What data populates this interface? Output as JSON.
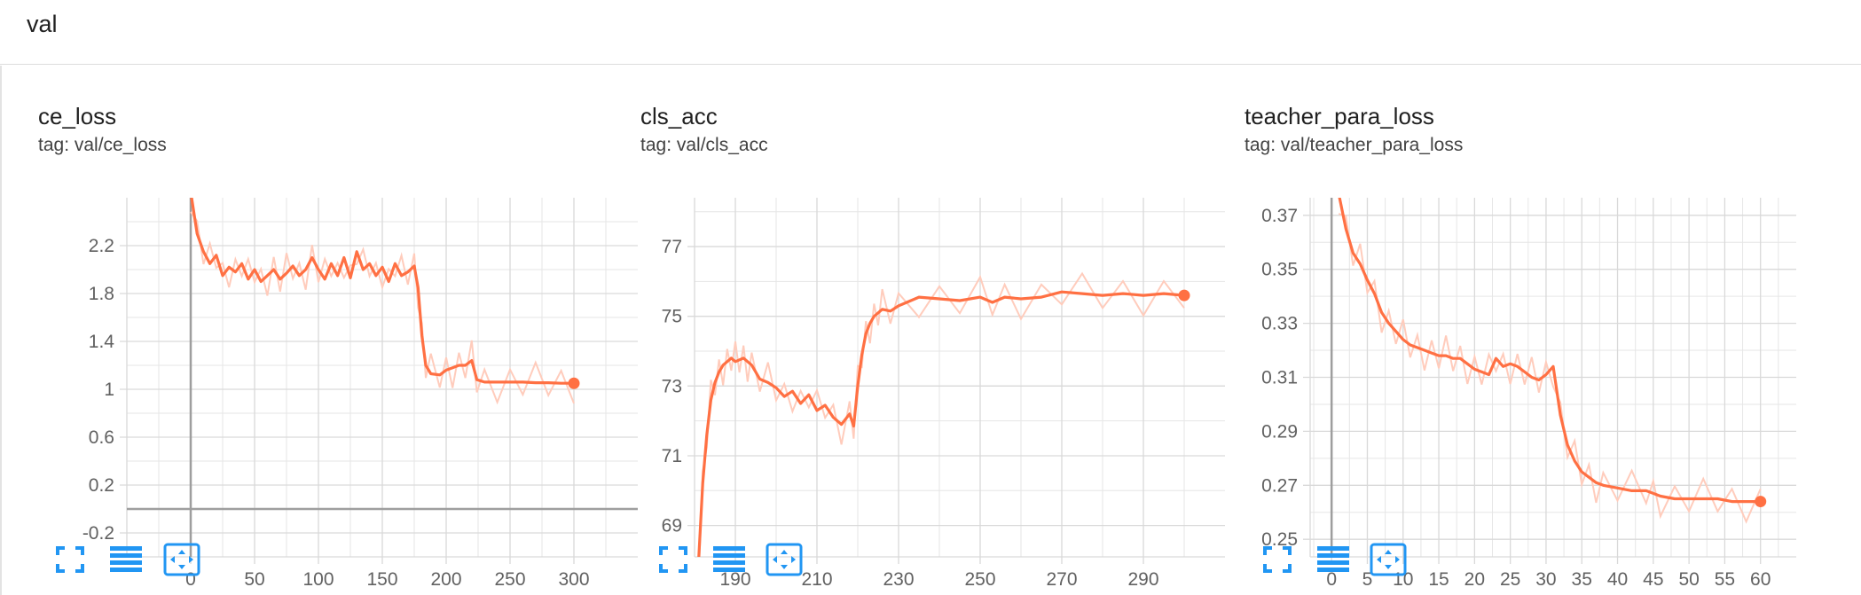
{
  "group": {
    "title": "val"
  },
  "colors": {
    "series": "#ff7043",
    "series_light": "#ffccbc",
    "grid": "#d9d9d9",
    "axis": "#9e9e9e",
    "icon": "#2196f3"
  },
  "toolbar": {
    "buttons": [
      {
        "icon": "fullscreen-icon"
      },
      {
        "icon": "list-icon"
      },
      {
        "icon": "fit-domain-icon"
      }
    ]
  },
  "chart_data": [
    {
      "type": "line",
      "title": "ce_loss",
      "tag": "tag: val/ce_loss",
      "xlim": [
        -50,
        350
      ],
      "ylim": [
        -0.4,
        2.6
      ],
      "xticks": [
        0,
        50,
        100,
        150,
        200,
        250,
        300
      ],
      "yticks": [
        -0.2,
        0.2,
        0.6,
        1,
        1.4,
        1.8,
        2.2
      ],
      "xtick_labels": [
        "0",
        "50",
        "100",
        "150",
        "200",
        "250",
        "300"
      ],
      "ytick_labels": [
        "-0.2",
        "0.2",
        "0.6",
        "1",
        "1.4",
        "1.8",
        "2.2"
      ],
      "series": [
        {
          "x": [
            0,
            5,
            10,
            15,
            20,
            25,
            30,
            35,
            40,
            45,
            50,
            55,
            60,
            65,
            70,
            75,
            80,
            85,
            90,
            95,
            100,
            105,
            110,
            115,
            120,
            125,
            130,
            135,
            140,
            145,
            150,
            155,
            160,
            165,
            170,
            175,
            178,
            181,
            184,
            188,
            195,
            200,
            205,
            210,
            215,
            220,
            224,
            230,
            240,
            250,
            260,
            270,
            280,
            290,
            300
          ],
          "y": [
            2.65,
            2.3,
            2.15,
            2.05,
            2.12,
            1.95,
            2.02,
            1.98,
            2.05,
            1.92,
            2.0,
            1.9,
            1.95,
            2.0,
            1.92,
            1.97,
            2.03,
            1.95,
            2.0,
            2.1,
            2.0,
            1.92,
            2.05,
            1.95,
            2.1,
            1.93,
            2.15,
            2.0,
            2.05,
            1.95,
            2.02,
            1.9,
            2.05,
            1.95,
            1.98,
            2.03,
            1.85,
            1.45,
            1.2,
            1.13,
            1.12,
            1.16,
            1.18,
            1.2,
            1.2,
            1.24,
            1.08,
            1.06,
            1.06,
            1.06,
            1.06,
            1.055,
            1.055,
            1.05,
            1.05
          ]
        }
      ]
    },
    {
      "type": "line",
      "title": "cls_acc",
      "tag": "tag: val/cls_acc",
      "xlim": [
        180,
        310
      ],
      "ylim": [
        68.1,
        78.4
      ],
      "xticks": [
        190,
        210,
        230,
        250,
        270,
        290
      ],
      "yticks": [
        69,
        71,
        73,
        75,
        77
      ],
      "xtick_labels": [
        "190",
        "210",
        "230",
        "250",
        "270",
        "290"
      ],
      "ytick_labels": [
        "69",
        "71",
        "73",
        "75",
        "77"
      ],
      "series": [
        {
          "x": [
            181,
            182,
            183,
            184,
            185,
            186,
            187,
            188,
            189,
            190,
            191,
            192,
            193,
            194,
            196,
            198,
            200,
            202,
            204,
            206,
            208,
            210,
            212,
            214,
            216,
            218,
            219,
            220,
            221,
            222,
            223,
            224,
            225,
            226,
            228,
            230,
            235,
            240,
            245,
            250,
            253,
            256,
            260,
            265,
            270,
            275,
            280,
            285,
            290,
            295,
            300
          ],
          "y": [
            68.0,
            70.2,
            71.6,
            72.6,
            73.1,
            73.4,
            73.6,
            73.7,
            73.8,
            73.7,
            73.75,
            73.8,
            73.7,
            73.6,
            73.2,
            73.1,
            72.95,
            72.7,
            72.85,
            72.5,
            72.75,
            72.3,
            72.45,
            72.1,
            71.9,
            72.2,
            71.85,
            73.0,
            73.9,
            74.5,
            74.8,
            75.0,
            75.1,
            75.2,
            75.15,
            75.3,
            75.55,
            75.5,
            75.45,
            75.55,
            75.4,
            75.55,
            75.5,
            75.55,
            75.7,
            75.65,
            75.6,
            75.65,
            75.6,
            75.65,
            75.6
          ]
        }
      ]
    },
    {
      "type": "line",
      "title": "teacher_para_loss",
      "tag": "tag: val/teacher_para_loss",
      "xlim": [
        -3,
        65
      ],
      "ylim": [
        0.2435,
        0.3765
      ],
      "xticks": [
        0,
        5,
        10,
        15,
        20,
        25,
        30,
        35,
        40,
        45,
        50,
        55,
        60
      ],
      "yticks": [
        0.25,
        0.27,
        0.29,
        0.31,
        0.33,
        0.35,
        0.37
      ],
      "xtick_labels": [
        "0",
        "5",
        "10",
        "15",
        "20",
        "25",
        "30",
        "35",
        "40",
        "45",
        "50",
        "55",
        "60"
      ],
      "ytick_labels": [
        "0.25",
        "0.27",
        "0.29",
        "0.31",
        "0.33",
        "0.35",
        "0.37"
      ],
      "series": [
        {
          "x": [
            1,
            2,
            3,
            4,
            5,
            6,
            7,
            8,
            9,
            10,
            11,
            12,
            13,
            14,
            15,
            16,
            17,
            18,
            19,
            20,
            21,
            22,
            23,
            24,
            25,
            26,
            27,
            28,
            29,
            30,
            31,
            32,
            33,
            34,
            35,
            36,
            37,
            38,
            40,
            42,
            44,
            45,
            46,
            48,
            50,
            52,
            54,
            56,
            58,
            60
          ],
          "y": [
            0.378,
            0.365,
            0.356,
            0.352,
            0.346,
            0.341,
            0.334,
            0.33,
            0.327,
            0.324,
            0.322,
            0.321,
            0.32,
            0.319,
            0.318,
            0.318,
            0.317,
            0.317,
            0.315,
            0.313,
            0.312,
            0.311,
            0.317,
            0.314,
            0.315,
            0.314,
            0.312,
            0.31,
            0.309,
            0.311,
            0.314,
            0.296,
            0.285,
            0.279,
            0.275,
            0.273,
            0.271,
            0.27,
            0.269,
            0.268,
            0.268,
            0.267,
            0.266,
            0.265,
            0.265,
            0.265,
            0.265,
            0.264,
            0.264,
            0.264
          ]
        }
      ]
    }
  ]
}
